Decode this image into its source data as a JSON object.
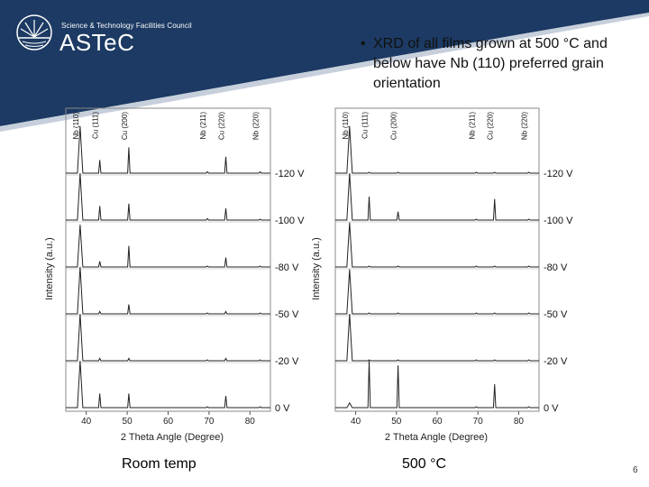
{
  "header": {
    "org_tagline": "Science & Technology Facilities Council",
    "org_name": "ASTeC",
    "brand_color": "#1c3a63"
  },
  "bullet": {
    "text": "XRD of all films grown at 500 °C and below have Nb (110) preferred grain orientation"
  },
  "captions": {
    "left": "Room temp",
    "right": "500 °C"
  },
  "page_number": "6",
  "chart_data": [
    {
      "type": "line",
      "xlabel": "2 Theta Angle (Degree)",
      "ylabel": "Intensity (a.u.)",
      "xlim": [
        35,
        85
      ],
      "xticks": [
        40,
        50,
        60,
        70,
        80
      ],
      "peak_labels": [
        {
          "label": "Nb (110)",
          "x": 38.5
        },
        {
          "label": "Cu (111)",
          "x": 43.3
        },
        {
          "label": "Cu (200)",
          "x": 50.4
        },
        {
          "label": "Nb (211)",
          "x": 69.6
        },
        {
          "label": "Cu (220)",
          "x": 74.1
        },
        {
          "label": "Nb (220)",
          "x": 82.5
        }
      ],
      "series": [
        {
          "name": "-120 V",
          "peaks": [
            [
              38.5,
              1.0
            ],
            [
              43.3,
              0.28
            ],
            [
              50.4,
              0.55
            ],
            [
              69.6,
              0.03
            ],
            [
              74.1,
              0.35
            ],
            [
              82.5,
              0.03
            ]
          ]
        },
        {
          "name": "-100 V",
          "peaks": [
            [
              38.5,
              1.0
            ],
            [
              43.3,
              0.3
            ],
            [
              50.4,
              0.35
            ],
            [
              69.6,
              0.03
            ],
            [
              74.1,
              0.25
            ],
            [
              82.5,
              0.02
            ]
          ]
        },
        {
          "name": "-80 V",
          "peaks": [
            [
              38.5,
              0.9
            ],
            [
              43.3,
              0.12
            ],
            [
              50.4,
              0.45
            ],
            [
              69.6,
              0.02
            ],
            [
              74.1,
              0.2
            ],
            [
              82.5,
              0.02
            ]
          ]
        },
        {
          "name": "-50 V",
          "peaks": [
            [
              38.5,
              1.0
            ],
            [
              43.3,
              0.05
            ],
            [
              50.4,
              0.2
            ],
            [
              69.6,
              0.02
            ],
            [
              74.1,
              0.05
            ],
            [
              82.5,
              0.02
            ]
          ]
        },
        {
          "name": "-20 V",
          "peaks": [
            [
              38.5,
              1.0
            ],
            [
              43.3,
              0.05
            ],
            [
              50.4,
              0.05
            ],
            [
              69.6,
              0.02
            ],
            [
              74.1,
              0.05
            ],
            [
              82.5,
              0.02
            ]
          ]
        },
        {
          "name": "0 V",
          "peaks": [
            [
              38.5,
              1.0
            ],
            [
              43.3,
              0.3
            ],
            [
              50.4,
              0.3
            ],
            [
              69.6,
              0.02
            ],
            [
              74.1,
              0.25
            ],
            [
              82.5,
              0.02
            ]
          ]
        }
      ]
    },
    {
      "type": "line",
      "xlabel": "2 Theta Angle (Degree)",
      "ylabel": "Intensity (a.u.)",
      "xlim": [
        35,
        85
      ],
      "xticks": [
        40,
        50,
        60,
        70,
        80
      ],
      "peak_labels": [
        {
          "label": "Nb (110)",
          "x": 38.5
        },
        {
          "label": "Cu (111)",
          "x": 43.3
        },
        {
          "label": "Cu (200)",
          "x": 50.4
        },
        {
          "label": "Nb (211)",
          "x": 69.6
        },
        {
          "label": "Cu (220)",
          "x": 74.1
        },
        {
          "label": "Nb (220)",
          "x": 82.5
        }
      ],
      "series": [
        {
          "name": "-120 V",
          "peaks": [
            [
              38.5,
              1.0
            ],
            [
              43.3,
              0.02
            ],
            [
              50.4,
              0.02
            ],
            [
              69.6,
              0.02
            ],
            [
              74.1,
              0.02
            ],
            [
              82.5,
              0.02
            ]
          ]
        },
        {
          "name": "-100 V",
          "peaks": [
            [
              38.5,
              1.0
            ],
            [
              43.3,
              0.5
            ],
            [
              50.4,
              0.18
            ],
            [
              69.6,
              0.02
            ],
            [
              74.1,
              0.45
            ],
            [
              82.5,
              0.02
            ]
          ]
        },
        {
          "name": "-80 V",
          "peaks": [
            [
              38.5,
              0.95
            ],
            [
              43.3,
              0.02
            ],
            [
              50.4,
              0.02
            ],
            [
              69.6,
              0.02
            ],
            [
              74.1,
              0.02
            ],
            [
              82.5,
              0.02
            ]
          ]
        },
        {
          "name": "-50 V",
          "peaks": [
            [
              38.5,
              0.95
            ],
            [
              43.3,
              0.02
            ],
            [
              50.4,
              0.02
            ],
            [
              69.6,
              0.02
            ],
            [
              74.1,
              0.02
            ],
            [
              82.5,
              0.02
            ]
          ]
        },
        {
          "name": "-20 V",
          "peaks": [
            [
              38.5,
              1.0
            ],
            [
              43.3,
              0.02
            ],
            [
              50.4,
              0.02
            ],
            [
              69.6,
              0.02
            ],
            [
              74.1,
              0.02
            ],
            [
              82.5,
              0.02
            ]
          ]
        },
        {
          "name": "0 V",
          "peaks": [
            [
              38.5,
              0.1
            ],
            [
              43.3,
              1.0
            ],
            [
              50.4,
              0.9
            ],
            [
              69.6,
              0.02
            ],
            [
              74.1,
              0.5
            ],
            [
              82.5,
              0.02
            ]
          ]
        }
      ]
    }
  ]
}
